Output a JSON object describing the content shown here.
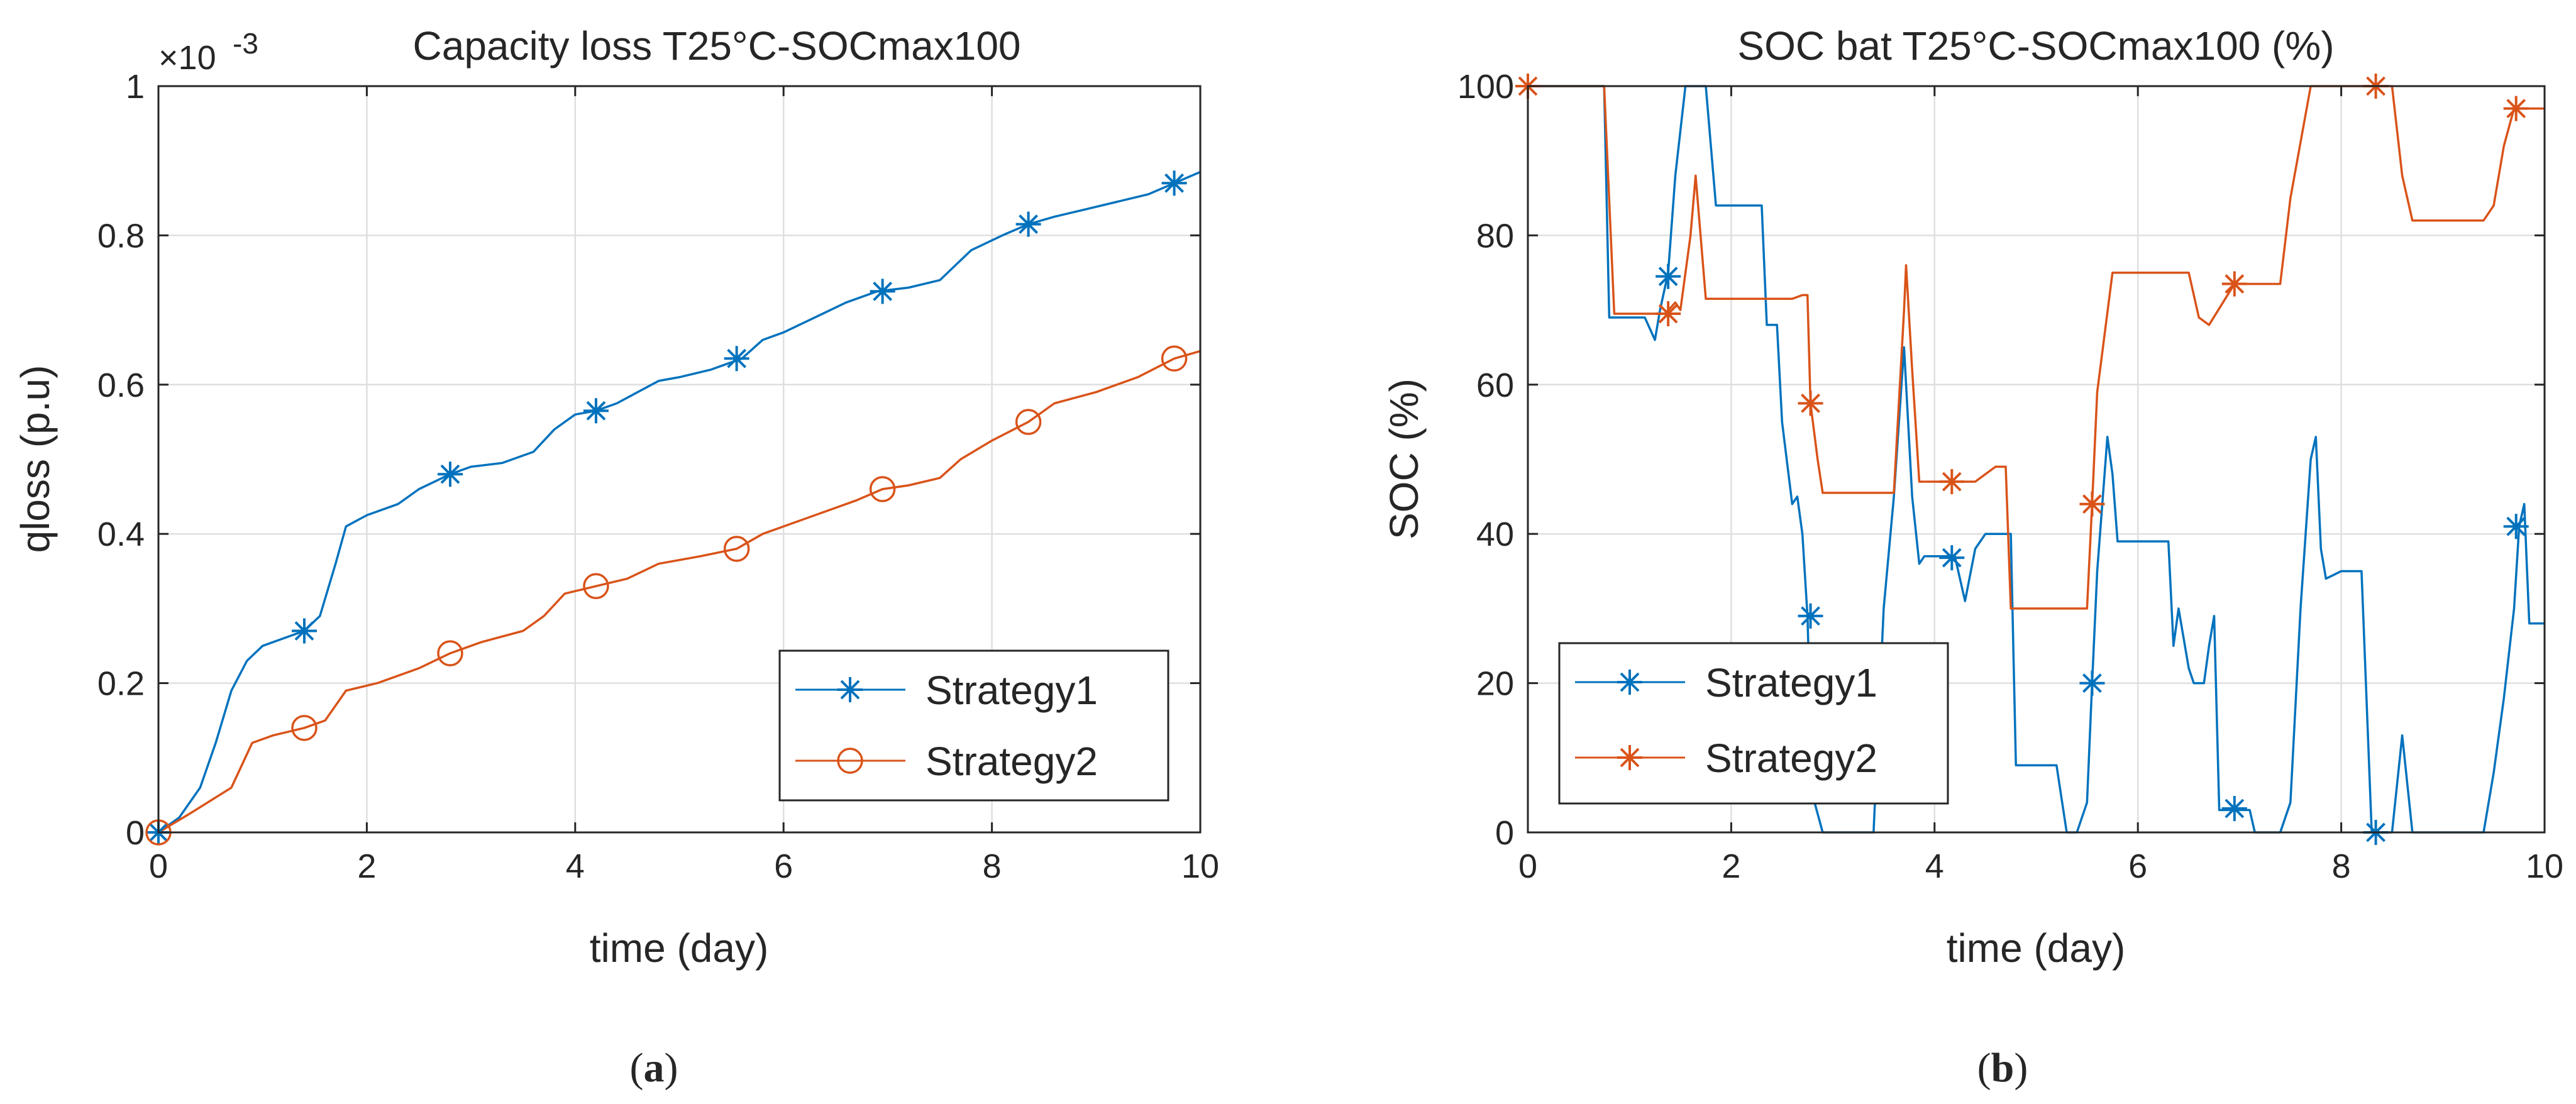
{
  "chart_data": [
    {
      "type": "line",
      "panel": "a",
      "title": "Capacity loss T25°C-SOCmax100",
      "exponent_label": "×10",
      "exponent_power": "-3",
      "xlabel": "time (day)",
      "ylabel": "qloss (p.u)",
      "xlim": [
        0,
        10
      ],
      "ylim": [
        0,
        1
      ],
      "xticks": [
        "0",
        "2",
        "4",
        "6",
        "8",
        "10"
      ],
      "yticks": [
        "0",
        "0.2",
        "0.4",
        "0.6",
        "0.8",
        "1"
      ],
      "xtick_values": [
        0,
        2,
        4,
        6,
        8,
        10
      ],
      "ytick_values": [
        0,
        0.2,
        0.4,
        0.6,
        0.8,
        1
      ],
      "grid": true,
      "legend_position": "bottom-right",
      "series": [
        {
          "name": "Strategy1",
          "color": "#0072BD",
          "marker": "asterisk",
          "x": [
            0,
            0.2,
            0.4,
            0.55,
            0.7,
            0.85,
            1.0,
            1.2,
            1.4,
            1.55,
            1.7,
            1.8,
            2.0,
            2.3,
            2.5,
            2.8,
            3.0,
            3.3,
            3.6,
            3.8,
            4.0,
            4.2,
            4.4,
            4.6,
            4.8,
            5.0,
            5.3,
            5.6,
            5.8,
            6.0,
            6.3,
            6.6,
            6.9,
            7.2,
            7.5,
            7.8,
            8.1,
            8.35,
            8.6,
            8.9,
            9.2,
            9.5,
            9.75,
            10.0
          ],
          "y": [
            0,
            0.02,
            0.06,
            0.12,
            0.19,
            0.23,
            0.25,
            0.26,
            0.27,
            0.29,
            0.36,
            0.41,
            0.425,
            0.44,
            0.46,
            0.48,
            0.49,
            0.495,
            0.51,
            0.54,
            0.56,
            0.565,
            0.575,
            0.59,
            0.605,
            0.61,
            0.62,
            0.635,
            0.66,
            0.67,
            0.69,
            0.71,
            0.725,
            0.73,
            0.74,
            0.78,
            0.8,
            0.815,
            0.825,
            0.835,
            0.845,
            0.855,
            0.87,
            0.885
          ],
          "marker_x": [
            0,
            1.4,
            2.8,
            4.2,
            5.55,
            6.95,
            8.35,
            9.75
          ],
          "marker_y": [
            0,
            0.27,
            0.48,
            0.565,
            0.635,
            0.725,
            0.815,
            0.87
          ]
        },
        {
          "name": "Strategy2",
          "color": "#D95319",
          "marker": "circle",
          "x": [
            0,
            0.3,
            0.7,
            0.9,
            1.1,
            1.4,
            1.6,
            1.8,
            2.1,
            2.5,
            2.8,
            3.1,
            3.5,
            3.7,
            3.9,
            4.2,
            4.5,
            4.8,
            5.2,
            5.55,
            5.8,
            6.1,
            6.4,
            6.7,
            6.95,
            7.2,
            7.5,
            7.7,
            8.0,
            8.35,
            8.6,
            9.0,
            9.4,
            9.75,
            10.0
          ],
          "y": [
            0,
            0.025,
            0.06,
            0.12,
            0.13,
            0.14,
            0.15,
            0.19,
            0.2,
            0.22,
            0.24,
            0.255,
            0.27,
            0.29,
            0.32,
            0.33,
            0.34,
            0.36,
            0.37,
            0.38,
            0.4,
            0.415,
            0.43,
            0.445,
            0.46,
            0.465,
            0.475,
            0.5,
            0.525,
            0.55,
            0.575,
            0.59,
            0.61,
            0.635,
            0.645
          ],
          "marker_x": [
            0,
            1.4,
            2.8,
            4.2,
            5.55,
            6.95,
            8.35,
            9.75
          ],
          "marker_y": [
            0,
            0.14,
            0.24,
            0.33,
            0.38,
            0.46,
            0.55,
            0.635
          ]
        }
      ]
    },
    {
      "type": "line",
      "panel": "b",
      "title": "SOC bat T25°C-SOCmax100 (%)",
      "xlabel": "time (day)",
      "ylabel": "SOC (%)",
      "xlim": [
        0,
        10
      ],
      "ylim": [
        0,
        100
      ],
      "xticks": [
        "0",
        "2",
        "4",
        "6",
        "8",
        "10"
      ],
      "yticks": [
        "0",
        "20",
        "40",
        "60",
        "80",
        "100"
      ],
      "xtick_values": [
        0,
        2,
        4,
        6,
        8,
        10
      ],
      "ytick_values": [
        0,
        20,
        40,
        60,
        80,
        100
      ],
      "grid": true,
      "legend_position": "bottom-left",
      "series": [
        {
          "name": "Strategy1",
          "color": "#0072BD",
          "marker": "asterisk",
          "x": [
            0,
            0.75,
            0.8,
            1.0,
            1.15,
            1.25,
            1.3,
            1.38,
            1.45,
            1.55,
            1.65,
            1.75,
            1.85,
            1.95,
            2.1,
            2.3,
            2.35,
            2.45,
            2.5,
            2.6,
            2.65,
            2.7,
            2.75,
            2.8,
            2.9,
            3.0,
            3.2,
            3.4,
            3.5,
            3.6,
            3.7,
            3.78,
            3.85,
            3.9,
            4.0,
            4.1,
            4.2,
            4.3,
            4.4,
            4.5,
            4.6,
            4.75,
            4.8,
            5.0,
            5.2,
            5.3,
            5.35,
            5.4,
            5.5,
            5.55,
            5.6,
            5.7,
            5.75,
            5.8,
            5.85,
            6.0,
            6.3,
            6.35,
            6.4,
            6.5,
            6.55,
            6.65,
            6.7,
            6.75,
            6.8,
            6.9,
            6.95,
            7.1,
            7.15,
            7.4,
            7.5,
            7.6,
            7.7,
            7.75,
            7.8,
            7.85,
            8.0,
            8.1,
            8.2,
            8.3,
            8.4,
            8.5,
            8.6,
            8.7,
            8.8,
            8.85,
            9.0,
            9.3,
            9.4,
            9.5,
            9.6,
            9.7,
            9.75,
            9.8,
            9.85,
            10.0
          ],
          "y": [
            100,
            100,
            69,
            69,
            69,
            66,
            70,
            75,
            88,
            100,
            100,
            100,
            84,
            84,
            84,
            84,
            68,
            68,
            55,
            44,
            45,
            40,
            29,
            5,
            0,
            0,
            0,
            0,
            30,
            45,
            65,
            45,
            36,
            37,
            37,
            37,
            37,
            31,
            38,
            40,
            40,
            40,
            9,
            9,
            9,
            0,
            0,
            0,
            4,
            20,
            35,
            53,
            48,
            39,
            39,
            39,
            39,
            25,
            30,
            22,
            20,
            20,
            25,
            29,
            3,
            3,
            3,
            3,
            0,
            0,
            4,
            30,
            50,
            53,
            38,
            34,
            35,
            35,
            35,
            0,
            0,
            0,
            13,
            0,
            0,
            0,
            0,
            0,
            0,
            8,
            18,
            30,
            41,
            44,
            28,
            28
          ],
          "marker_x": [
            1.38,
            2.78,
            4.17,
            5.55,
            6.95,
            8.34,
            9.72
          ],
          "marker_y": [
            74.5,
            29,
            36.8,
            20,
            3.2,
            0,
            41
          ]
        },
        {
          "name": "Strategy2",
          "color": "#D95319",
          "marker": "asterisk",
          "x": [
            0,
            0.75,
            0.85,
            1.0,
            1.2,
            1.35,
            1.45,
            1.5,
            1.6,
            1.65,
            1.75,
            1.85,
            2.0,
            2.3,
            2.6,
            2.7,
            2.75,
            2.78,
            2.85,
            2.9,
            3.0,
            3.3,
            3.6,
            3.7,
            3.72,
            3.78,
            3.85,
            4.0,
            4.4,
            4.6,
            4.7,
            4.75,
            5.0,
            5.3,
            5.5,
            5.55,
            5.6,
            5.75,
            6.0,
            6.3,
            6.5,
            6.6,
            6.7,
            6.95,
            7.3,
            7.4,
            7.5,
            7.7,
            7.75,
            8.0,
            8.3,
            8.5,
            8.6,
            8.7,
            8.75,
            8.8,
            9.0,
            9.4,
            9.5,
            9.6,
            9.7,
            10.0
          ],
          "y": [
            100,
            100,
            69.5,
            69.5,
            69.5,
            69.5,
            71,
            70,
            80,
            88,
            71.5,
            71.5,
            71.5,
            71.5,
            71.5,
            72,
            72,
            57.5,
            50,
            45.5,
            45.5,
            45.5,
            45.5,
            70,
            76,
            62,
            47,
            47,
            47,
            49,
            49,
            30,
            30,
            30,
            30,
            44,
            59,
            75,
            75,
            75,
            75,
            69,
            68,
            73.5,
            73.5,
            73.5,
            85,
            100,
            100,
            100,
            100,
            100,
            88,
            82,
            82,
            82,
            82,
            82,
            84,
            92,
            97,
            97
          ],
          "marker_x": [
            0,
            1.38,
            2.78,
            4.17,
            5.55,
            6.95,
            8.34,
            9.72
          ],
          "marker_y": [
            100,
            69.5,
            57.5,
            47,
            44,
            73.5,
            100,
            97
          ]
        }
      ]
    }
  ],
  "captions": {
    "a": "a",
    "b": "b"
  },
  "colors": {
    "axis": "#262626",
    "grid": "#DFDFDF",
    "background": "#FFFFFF"
  }
}
